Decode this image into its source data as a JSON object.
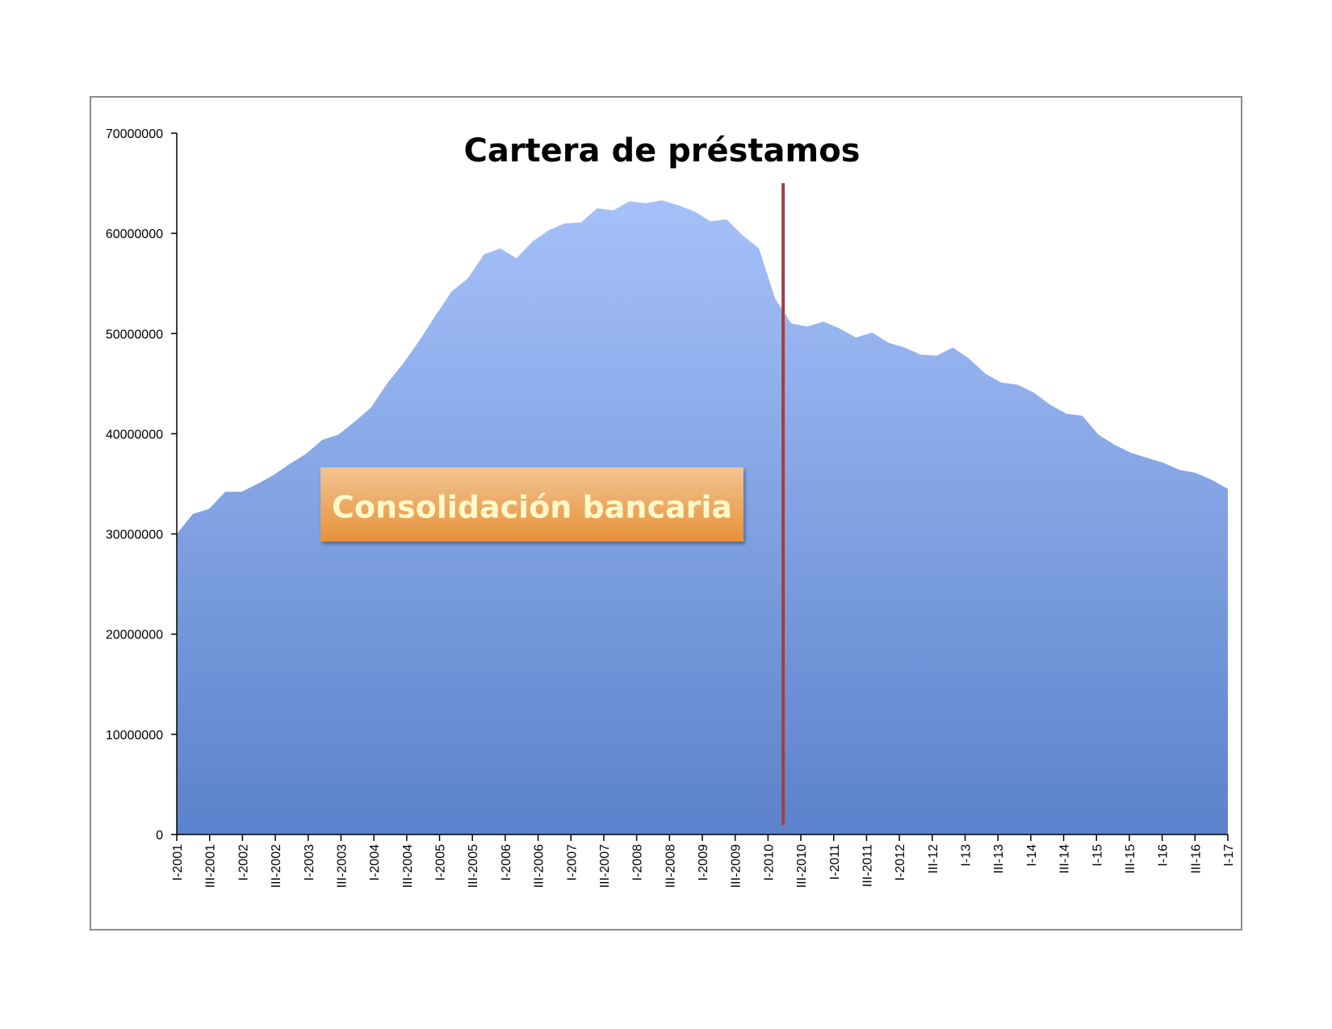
{
  "chart_data": {
    "type": "area",
    "title": "Cartera de préstamos",
    "xlabel": "",
    "ylabel": "",
    "ylim": [
      0,
      70000000
    ],
    "y_ticks": [
      0,
      10000000,
      20000000,
      30000000,
      40000000,
      50000000,
      60000000,
      70000000
    ],
    "y_tick_labels": [
      "0",
      "10000000",
      "20000000",
      "30000000",
      "40000000",
      "50000000",
      "60000000",
      "70000000"
    ],
    "x_tick_labels": [
      "I-2001",
      "III-2001",
      "I-2002",
      "III-2002",
      "I-2003",
      "III-2003",
      "I-2004",
      "III-2004",
      "I-2005",
      "III-2005",
      "I-2006",
      "III-2006",
      "I-2007",
      "III-2007",
      "I-2008",
      "III-2008",
      "I-2009",
      "III-2009",
      "I-2010",
      "III-2010",
      "I-2011",
      "III-2011",
      "I-2012",
      "III-12",
      "I-13",
      "III-13",
      "I-14",
      "III-14",
      "I-15",
      "III-15",
      "I-16",
      "III-16",
      "I-17"
    ],
    "grid": false,
    "legend": "none",
    "fill_color_top": "#a6c1f9",
    "fill_color_bottom": "#5b82cc",
    "marker_color": "#a04040",
    "marker_after_period": "III-2010",
    "annotation": "Consolidación bancaria",
    "annotation_color": "#eba04a",
    "values": [
      30000000,
      32000000,
      32500000,
      34200000,
      34200000,
      35000000,
      35900000,
      37000000,
      38000000,
      39400000,
      39900000,
      41200000,
      42600000,
      45000000,
      47000000,
      49300000,
      51800000,
      54200000,
      55500000,
      57900000,
      58500000,
      57500000,
      59200000,
      60300000,
      61000000,
      61100000,
      62500000,
      62300000,
      63200000,
      63000000,
      63300000,
      62800000,
      62200000,
      61200000,
      61400000,
      59800000,
      58500000,
      53500000,
      51000000,
      50700000,
      51200000,
      50500000,
      49600000,
      50100000,
      49100000,
      48600000,
      47900000,
      47800000,
      48600000,
      47500000,
      46000000,
      45100000,
      44900000,
      44100000,
      42900000,
      42000000,
      41800000,
      39900000,
      38900000,
      38100000,
      37600000,
      37100000,
      36400000,
      36100000,
      35400000,
      34500000
    ]
  }
}
